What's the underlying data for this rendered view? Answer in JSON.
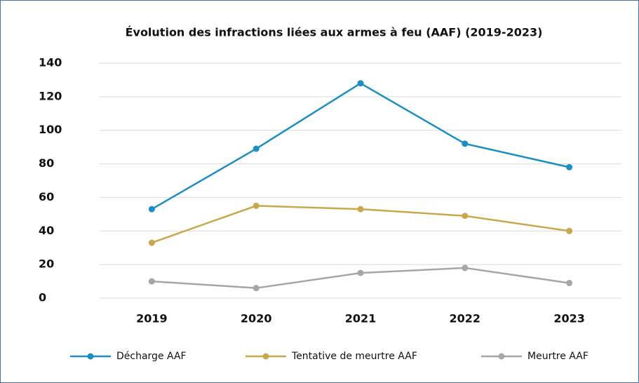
{
  "chart_data": {
    "type": "line",
    "title": "Évolution des infractions liées aux armes à feu (AAF) (2019-2023)",
    "categories": [
      "2019",
      "2020",
      "2021",
      "2022",
      "2023"
    ],
    "series": [
      {
        "name": "Décharge AAF",
        "color": "#1b8fc4",
        "values": [
          53,
          89,
          128,
          92,
          78
        ]
      },
      {
        "name": "Tentative de meurtre AAF",
        "color": "#c9a84c",
        "values": [
          33,
          55,
          53,
          49,
          40
        ]
      },
      {
        "name": "Meurtre AAF",
        "color": "#a6a6a6",
        "values": [
          10,
          6,
          15,
          18,
          9
        ]
      }
    ],
    "ylim": [
      0,
      140
    ],
    "yticks": [
      0,
      20,
      40,
      60,
      80,
      100,
      120,
      140
    ],
    "grid": true,
    "legend": "bottom"
  }
}
